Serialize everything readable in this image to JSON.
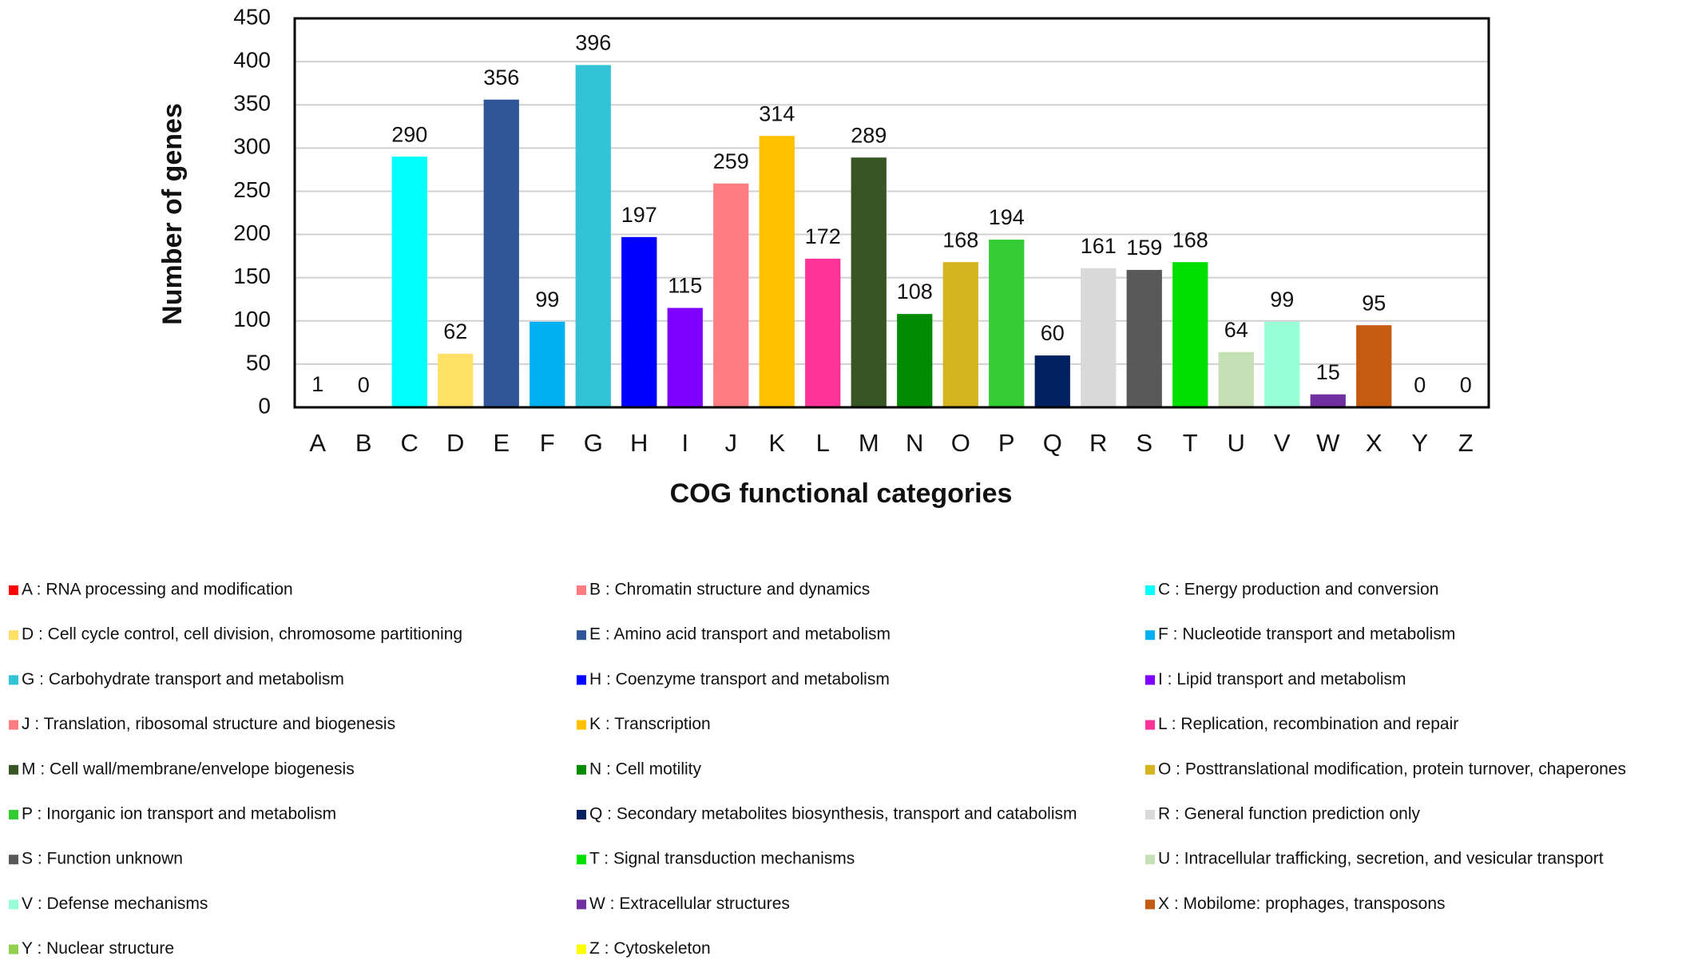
{
  "chart_data": {
    "type": "bar",
    "x_label": "COG functional categories",
    "y_label": "Number of genes",
    "categories": [
      "A",
      "B",
      "C",
      "D",
      "E",
      "F",
      "G",
      "H",
      "I",
      "J",
      "K",
      "L",
      "M",
      "N",
      "O",
      "P",
      "Q",
      "R",
      "S",
      "T",
      "U",
      "V",
      "W",
      "X",
      "Y",
      "Z"
    ],
    "values": [
      1,
      0,
      290,
      62,
      356,
      99,
      396,
      197,
      115,
      259,
      314,
      172,
      289,
      108,
      168,
      194,
      60,
      161,
      159,
      168,
      64,
      99,
      15,
      95,
      0,
      0
    ],
    "colors": [
      "#ff0000",
      "#ff7c80",
      "#00ffff",
      "#ffe066",
      "#2f5597",
      "#00b0f0",
      "#33c3d6",
      "#0000ff",
      "#7f00ff",
      "#ff7c80",
      "#ffc000",
      "#ff3399",
      "#375623",
      "#008a00",
      "#d4b41f",
      "#33cc33",
      "#002060",
      "#d9d9d9",
      "#595959",
      "#00e000",
      "#c5e0b4",
      "#99ffd6",
      "#7030a0",
      "#c55a11",
      "#92d050",
      "#ffff00"
    ],
    "legend_labels": [
      "A : RNA processing and modification",
      "B : Chromatin structure and dynamics",
      "C : Energy production and conversion",
      "D : Cell cycle control, cell division, chromosome partitioning",
      "E : Amino acid transport and metabolism",
      "F : Nucleotide transport and metabolism",
      "G : Carbohydrate transport and metabolism",
      "H : Coenzyme transport and metabolism",
      "I : Lipid transport and metabolism",
      "J : Translation, ribosomal structure and biogenesis",
      "K : Transcription",
      "L : Replication, recombination and repair",
      "M : Cell wall/membrane/envelope biogenesis",
      "N : Cell motility",
      "O : Posttranslational modification, protein turnover, chaperones",
      "P : Inorganic ion transport and metabolism",
      "Q : Secondary metabolites biosynthesis, transport and catabolism",
      "R : General function prediction only",
      "S : Function unknown",
      "T : Signal transduction mechanisms",
      "U : Intracellular trafficking, secretion, and vesicular transport",
      "V : Defense mechanisms",
      "W : Extracellular structures",
      "X : Mobilome: prophages, transposons",
      "Y : Nuclear structure",
      "Z : Cytoskeleton"
    ],
    "ylim": [
      0,
      450
    ],
    "yticks": [
      0,
      50,
      100,
      150,
      200,
      250,
      300,
      350,
      400,
      450
    ],
    "grid": true
  }
}
